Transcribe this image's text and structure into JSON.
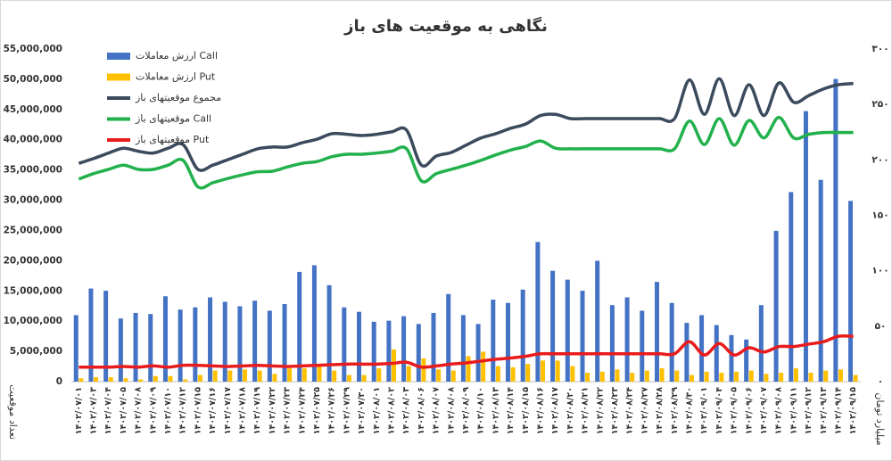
{
  "chart_data": {
    "type": "combo",
    "title": "نگاهی به موقعیت های باز",
    "y_label": "تعداد موقعیت",
    "y2_label": "میلیارد تومان",
    "legend": "upper left",
    "grid": false,
    "categories": [
      "۱۴۰۲/۰۷/۰۱",
      "۱۴۰۲/۰۷/۰۳",
      "۱۴۰۲/۰۷/۰۴",
      "۱۴۰۲/۰۷/۰۵",
      "۱۴۰۲/۰۷/۰۸",
      "۱۴۰۲/۰۷/۰۹",
      "۱۴۰۲/۰۷/۱۰",
      "۱۴۰۲/۰۷/۱۲",
      "۱۴۰۲/۰۷/۱۵",
      "۱۴۰۲/۰۷/۱۶",
      "۱۴۰۲/۰۷/۱۷",
      "۱۴۰۲/۰۷/۱۸",
      "۱۴۰۲/۰۷/۱۹",
      "۱۴۰۲/۰۷/۲۲",
      "۱۴۰۲/۰۷/۲۳",
      "۱۴۰۲/۰۷/۲۴",
      "۱۴۰۲/۰۷/۲۵",
      "۱۴۰۲/۰۷/۲۶",
      "۱۴۰۲/۰۷/۲۹",
      "۱۴۰۲/۰۷/۳۰",
      "۱۴۰۲/۰۸/۰۱",
      "۱۴۰۲/۰۸/۰۲",
      "۱۴۰۲/۰۸/۰۳",
      "۱۴۰۲/۰۸/۰۶",
      "۱۴۰۲/۰۸/۰۷",
      "۱۴۰۲/۰۸/۰۸",
      "۱۴۰۲/۰۸/۰۹",
      "۱۴۰۲/۰۸/۱۰",
      "۱۴۰۲/۰۸/۱۳",
      "۱۴۰۲/۰۸/۱۴",
      "۱۴۰۲/۰۸/۱۵",
      "۱۴۰۲/۰۸/۱۶",
      "۱۴۰۲/۰۸/۱۷",
      "۱۴۰۲/۰۸/۲۰",
      "۱۴۰۲/۰۸/۲۱",
      "۱۴۰۲/۰۸/۲۲",
      "۱۴۰۲/۰۸/۲۳",
      "۱۴۰۲/۰۸/۲۴",
      "۱۴۰۲/۰۸/۲۷",
      "۱۴۰۲/۰۸/۲۸",
      "۱۴۰۲/۰۸/۲۹",
      "۱۴۰۲/۰۸/۳۰",
      "۱۴۰۲/۰۹/۰۱",
      "۱۴۰۲/۰۹/۰۴",
      "۱۴۰۲/۰۹/۰۵",
      "۱۴۰۲/۰۹/۰۶",
      "۱۴۰۲/۰۹/۰۷",
      "۱۴۰۲/۰۹/۰۸",
      "۱۴۰۲/۰۹/۱۱",
      "۱۴۰۲/۰۹/۱۲",
      "۱۴۰۲/۰۹/۱۳",
      "۱۴۰۲/۰۹/۱۴",
      "۱۴۰۲/۰۹/۱۵"
    ],
    "ylim": [
      0,
      55000000
    ],
    "yticks": [
      0,
      {
        "value": 5000000,
        "label": "5,000,000"
      },
      {
        "value": 10000000,
        "label": "10,000,000"
      },
      {
        "value": 15000000,
        "label": "15,000,000"
      },
      {
        "value": 20000000,
        "label": "20,000,000"
      },
      {
        "value": 25000000,
        "label": "25,000,000"
      },
      {
        "value": 30000000,
        "label": "30,000,000"
      },
      {
        "value": 35000000,
        "label": "35,000,000"
      },
      {
        "value": 40000000,
        "label": "40,000,000"
      },
      {
        "value": 45000000,
        "label": "45,000,000"
      },
      {
        "value": 50000000,
        "label": "50,000,000"
      },
      {
        "value": 55000000,
        "label": "55,000,000"
      }
    ],
    "y2lim": [
      0,
      300
    ],
    "y2ticks": [
      {
        "value": 0,
        "label": "۰"
      },
      {
        "value": 50,
        "label": "۵۰"
      },
      {
        "value": 100,
        "label": "۱۰۰"
      },
      {
        "value": 150,
        "label": "۱۵۰"
      },
      {
        "value": 200,
        "label": "۲۰۰"
      },
      {
        "value": 250,
        "label": "۲۵۰"
      },
      {
        "value": 300,
        "label": "۳۰۰"
      }
    ],
    "series": [
      {
        "name": "ارزش معاملات Call",
        "type": "bar",
        "axis": "y2",
        "color": "#4472c4",
        "values": [
          60,
          84,
          82,
          57,
          62,
          61,
          77,
          65,
          67,
          76,
          72,
          68,
          73,
          64,
          70,
          99,
          105,
          87,
          67,
          63,
          54,
          55,
          59,
          52,
          62,
          79,
          60,
          52,
          74,
          71,
          83,
          126,
          100,
          92,
          82,
          109,
          69,
          76,
          64,
          90,
          71,
          53,
          60,
          51,
          42,
          38,
          69,
          136,
          171,
          244,
          182,
          273,
          163
        ]
      },
      {
        "name": "ارزش معاملات Put",
        "type": "bar",
        "axis": "y2",
        "color": "#ffc000",
        "values": [
          3,
          4,
          4,
          3,
          2,
          5,
          5,
          2,
          6,
          10,
          10,
          11,
          10,
          7,
          12,
          12,
          15,
          10,
          6,
          6,
          12,
          29,
          14,
          21,
          11,
          10,
          23,
          27,
          14,
          13,
          16,
          19,
          19,
          14,
          8,
          9,
          11,
          8,
          10,
          12,
          10,
          6,
          9,
          8,
          9,
          10,
          7,
          8,
          12,
          8,
          10,
          11,
          6
        ]
      },
      {
        "name": "مجموع موقعیتهای باز",
        "type": "line",
        "color": "#3b4a5c",
        "values": [
          36100000,
          36900000,
          37800000,
          38600000,
          38100000,
          37800000,
          38600000,
          39200000,
          35100000,
          35800000,
          36700000,
          37600000,
          38500000,
          38800000,
          38800000,
          39500000,
          40100000,
          41000000,
          40900000,
          40700000,
          40900000,
          41300000,
          41600000,
          35800000,
          37300000,
          37900000,
          39100000,
          40300000,
          41000000,
          41900000,
          42600000,
          44000000,
          44200000,
          43500000,
          43500000,
          43500000,
          43500000,
          43500000,
          43500000,
          43500000,
          43500000,
          49900000,
          44200000,
          50100000,
          44000000,
          49100000,
          44000000,
          49400000,
          46200000,
          47300000,
          48400000,
          49100000,
          49300000
        ]
      },
      {
        "name": "موقعیتهای باز Call",
        "type": "line",
        "color": "#22b14c",
        "values": [
          33500000,
          34400000,
          35100000,
          35800000,
          35100000,
          35100000,
          35800000,
          36600000,
          32200000,
          32900000,
          33600000,
          34200000,
          34700000,
          34800000,
          35500000,
          36100000,
          36400000,
          37200000,
          37600000,
          37600000,
          37800000,
          38100000,
          38500000,
          33200000,
          34400000,
          35100000,
          35800000,
          36600000,
          37500000,
          38300000,
          38900000,
          39800000,
          38600000,
          38500000,
          38500000,
          38500000,
          38500000,
          38500000,
          38500000,
          38500000,
          38500000,
          43100000,
          39200000,
          43500000,
          39100000,
          43200000,
          40300000,
          43700000,
          40300000,
          40900000,
          41200000,
          41200000,
          41200000
        ]
      },
      {
        "name": "موقعیتهای باز Put",
        "type": "line",
        "color": "#e81c1c",
        "values": [
          2400000,
          2400000,
          2400000,
          2500000,
          2400000,
          2600000,
          2400000,
          2700000,
          2700000,
          2600000,
          2500000,
          2600000,
          2700000,
          2600000,
          2500000,
          2600000,
          2700000,
          2800000,
          2900000,
          2900000,
          2900000,
          3000000,
          3200000,
          2400000,
          2600000,
          2900000,
          3100000,
          3400000,
          3700000,
          3900000,
          4200000,
          4600000,
          4600000,
          4600000,
          4600000,
          4600000,
          4600000,
          4600000,
          4600000,
          4600000,
          4600000,
          6600000,
          4400000,
          6300000,
          4400000,
          5600000,
          4900000,
          5800000,
          5800000,
          6200000,
          6600000,
          7500000,
          7500000
        ]
      }
    ]
  }
}
